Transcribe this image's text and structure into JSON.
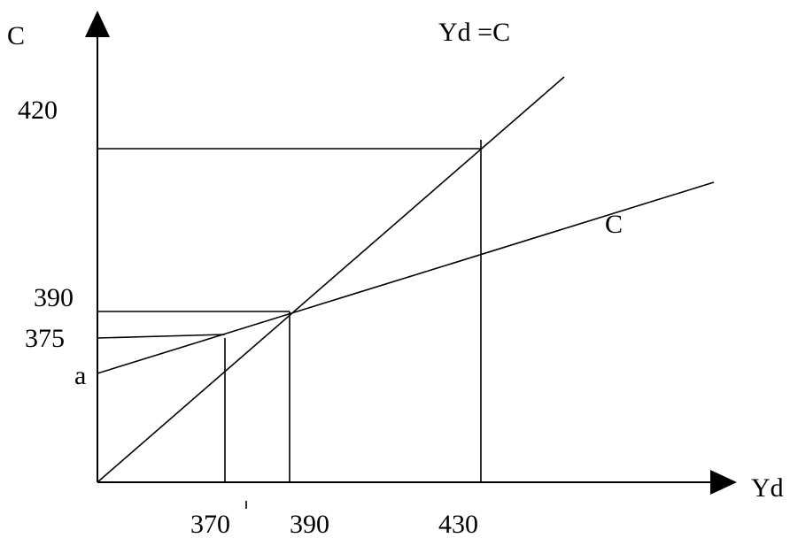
{
  "axes": {
    "y_label": "C",
    "x_label": "Yd"
  },
  "lines": {
    "line_45_label": "Yd =C",
    "consumption_label": "C"
  },
  "y_ticks": {
    "t420": "420",
    "t390": "390",
    "t375": "375",
    "intercept": "a"
  },
  "x_ticks": {
    "t370": "370",
    "t390": "390",
    "t430": "430"
  }
}
